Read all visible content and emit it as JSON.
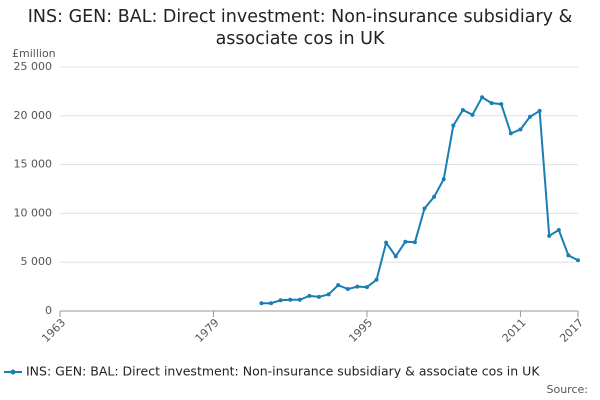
{
  "chart_data": {
    "type": "line",
    "title": "INS: GEN: BAL: Direct investment: Non-insurance subsidiary & associate cos in UK",
    "y_label": "£million",
    "source": "Source:",
    "x": [
      1984,
      1985,
      1986,
      1987,
      1988,
      1989,
      1990,
      1991,
      1992,
      1993,
      1994,
      1995,
      1996,
      1997,
      1998,
      1999,
      2000,
      2001,
      2002,
      2003,
      2004,
      2005,
      2006,
      2007,
      2008,
      2009,
      2010,
      2011,
      2012,
      2013,
      2014,
      2015,
      2016,
      2017
    ],
    "series": [
      {
        "name": "INS: GEN: BAL: Direct investment: Non-insurance subsidiary & associate cos in UK",
        "color": "#1a7db4",
        "values": [
          800,
          800,
          1100,
          1150,
          1150,
          1550,
          1450,
          1700,
          2650,
          2250,
          2500,
          2450,
          3200,
          7000,
          5600,
          7100,
          7050,
          10500,
          11700,
          13500,
          19000,
          20600,
          20100,
          21900,
          21300,
          21200,
          18200,
          18600,
          19900,
          20500,
          7700,
          8300,
          5700,
          5200
        ]
      }
    ],
    "xlim": [
      1963,
      2017
    ],
    "xticks": [
      1963,
      1979,
      1995,
      2011,
      2017
    ],
    "ylim": [
      0,
      25000
    ],
    "yticks": [
      0,
      {
        "value": 5000,
        "label": "5 000"
      },
      {
        "value": 10000,
        "label": "10 000"
      },
      {
        "value": 15000,
        "label": "15 000"
      },
      {
        "value": 20000,
        "label": "20 000"
      },
      {
        "value": 25000,
        "label": "25 000"
      }
    ],
    "grid": true,
    "legend": "bottom"
  }
}
